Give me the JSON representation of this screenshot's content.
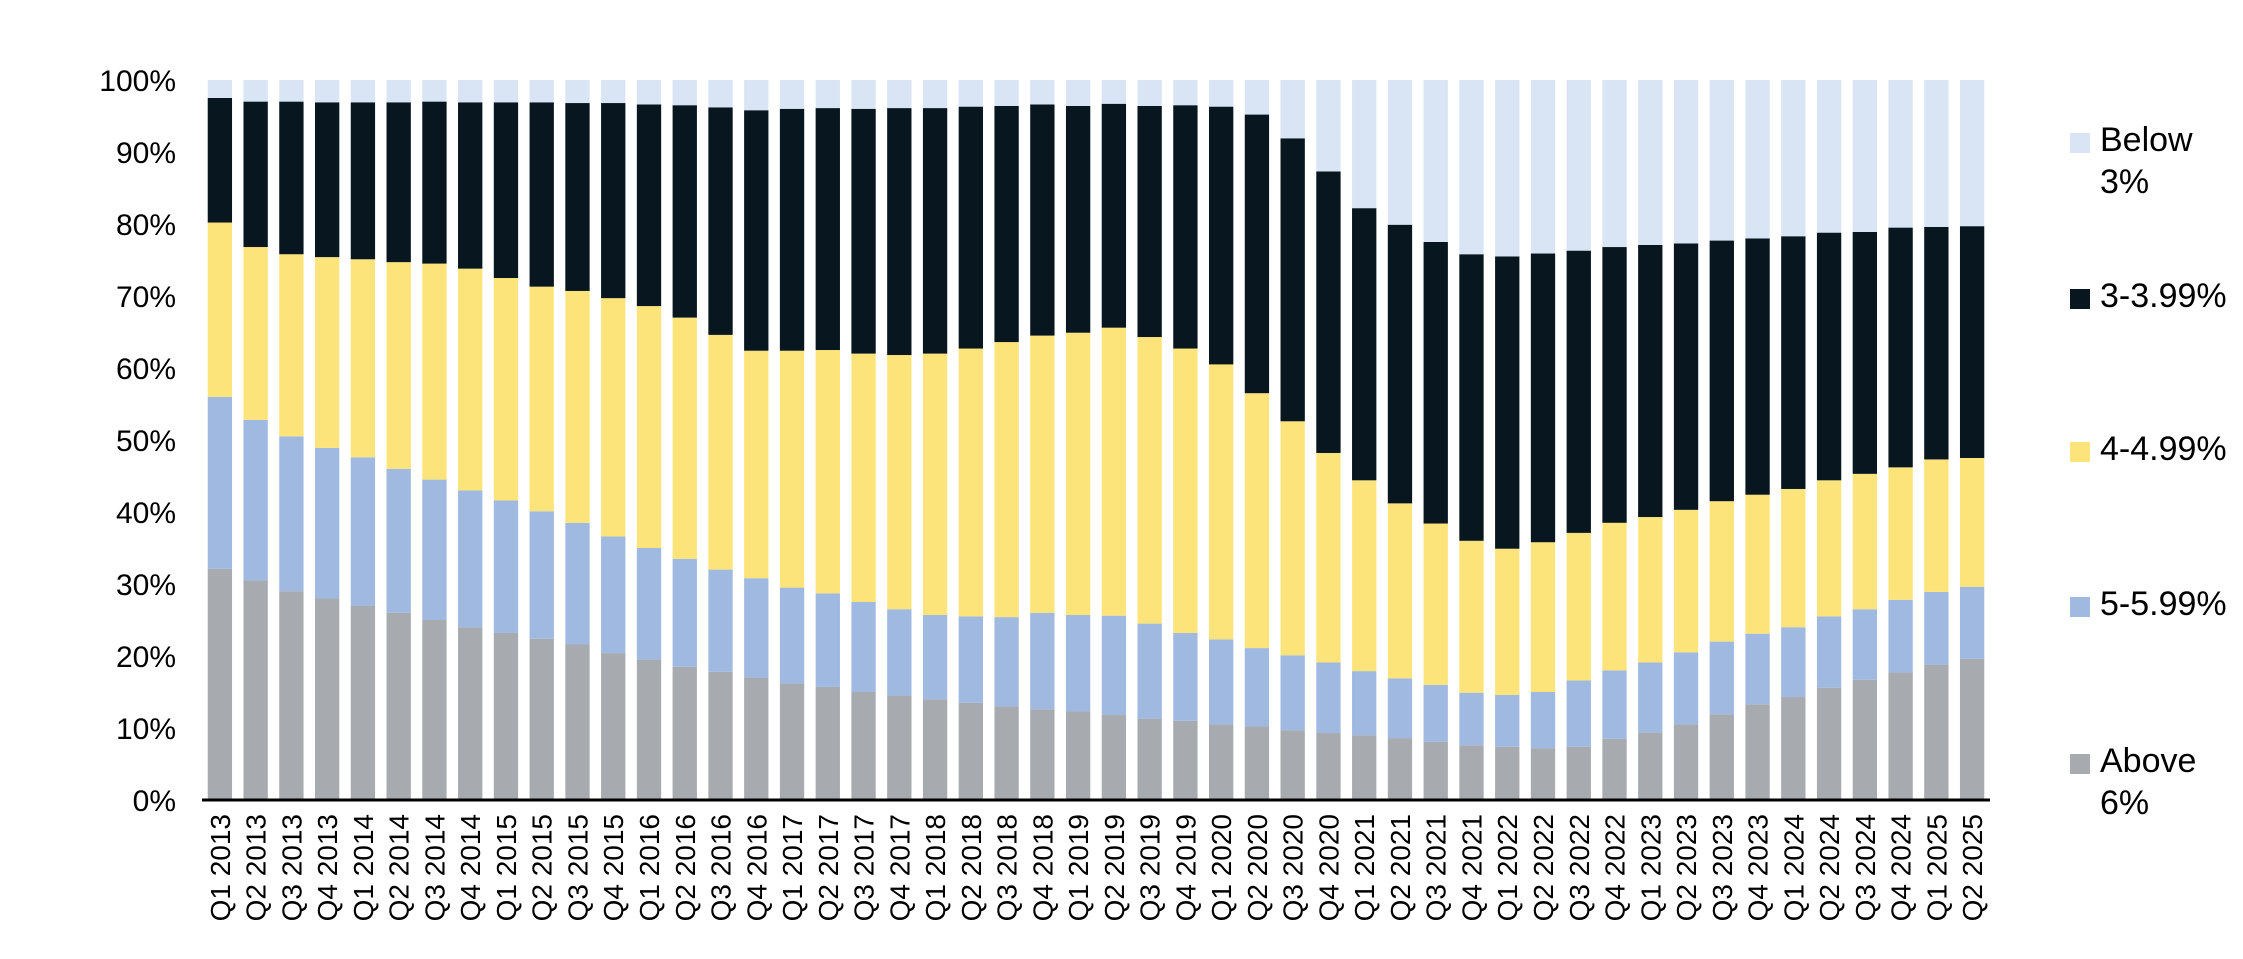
{
  "chart_data": {
    "type": "bar",
    "stacked": true,
    "title": "",
    "xlabel": "",
    "ylabel": "",
    "ylim": [
      0,
      100
    ],
    "yticks": [
      "0%",
      "10%",
      "20%",
      "30%",
      "40%",
      "50%",
      "60%",
      "70%",
      "80%",
      "90%",
      "100%"
    ],
    "legend_position": "right",
    "categories": [
      "Q1 2013",
      "Q2 2013",
      "Q3 2013",
      "Q4 2013",
      "Q1 2014",
      "Q2 2014",
      "Q3 2014",
      "Q4 2014",
      "Q1 2015",
      "Q2 2015",
      "Q3 2015",
      "Q4 2015",
      "Q1 2016",
      "Q2 2016",
      "Q3 2016",
      "Q4 2016",
      "Q1 2017",
      "Q2 2017",
      "Q3 2017",
      "Q4 2017",
      "Q1 2018",
      "Q2 2018",
      "Q3 2018",
      "Q4 2018",
      "Q1 2019",
      "Q2 2019",
      "Q3 2019",
      "Q4 2019",
      "Q1 2020",
      "Q2 2020",
      "Q3 2020",
      "Q4 2020",
      "Q1 2021",
      "Q2 2021",
      "Q3 2021",
      "Q4 2021",
      "Q1 2022",
      "Q2 2022",
      "Q3 2022",
      "Q4 2022",
      "Q1 2023",
      "Q2 2023",
      "Q3 2023",
      "Q4 2023",
      "Q1 2024",
      "Q2 2024",
      "Q3 2024",
      "Q4 2024",
      "Q1 2025",
      "Q2 2025"
    ],
    "series": [
      {
        "name": "Above 6%",
        "color": "#a7aaae",
        "values": [
          32.1,
          30.5,
          29.0,
          28.0,
          27.0,
          26.0,
          25.0,
          24.0,
          23.2,
          22.4,
          21.6,
          20.4,
          19.5,
          18.5,
          17.8,
          17.0,
          16.2,
          15.7,
          15.0,
          14.5,
          14.0,
          13.5,
          13.0,
          12.6,
          12.3,
          11.8,
          11.3,
          11.0,
          10.5,
          10.2,
          9.7,
          9.3,
          9.0,
          8.6,
          8.1,
          7.6,
          7.4,
          7.2,
          7.4,
          8.5,
          9.4,
          10.5,
          11.9,
          13.3,
          14.3,
          15.6,
          16.7,
          17.7,
          18.8,
          19.6
        ]
      },
      {
        "name": "5-5.99%",
        "color": "#9fb9e1",
        "values": [
          23.9,
          22.3,
          21.5,
          20.9,
          20.6,
          20.0,
          19.5,
          19.0,
          18.4,
          17.7,
          16.9,
          16.2,
          15.5,
          15.0,
          14.2,
          13.8,
          13.3,
          13.0,
          12.5,
          12.0,
          11.7,
          12.0,
          12.4,
          13.4,
          13.4,
          13.8,
          13.2,
          12.2,
          11.8,
          10.9,
          10.4,
          9.8,
          8.9,
          8.3,
          7.9,
          7.3,
          7.2,
          7.8,
          9.2,
          9.5,
          9.7,
          10.0,
          10.1,
          9.8,
          9.7,
          9.9,
          9.8,
          10.1,
          10.1,
          10.0
        ]
      },
      {
        "name": "4-4.99%",
        "color": "#fde47a",
        "values": [
          24.2,
          24.0,
          25.3,
          26.5,
          27.5,
          28.7,
          30.0,
          30.8,
          30.9,
          31.2,
          32.2,
          33.1,
          33.6,
          33.5,
          32.6,
          31.6,
          32.9,
          33.8,
          34.5,
          35.3,
          36.3,
          37.2,
          38.2,
          38.5,
          39.2,
          40.0,
          39.8,
          39.5,
          38.2,
          35.4,
          32.5,
          29.1,
          26.5,
          24.3,
          22.4,
          21.1,
          20.3,
          20.8,
          20.5,
          20.5,
          20.2,
          19.8,
          19.5,
          19.3,
          19.2,
          18.9,
          18.8,
          18.4,
          18.4,
          17.9
        ]
      },
      {
        "name": "3-3.99%",
        "color": "#07161f",
        "values": [
          17.3,
          20.2,
          21.2,
          21.5,
          21.8,
          22.2,
          22.5,
          23.1,
          24.4,
          25.6,
          26.1,
          27.1,
          28.0,
          29.5,
          31.6,
          33.4,
          33.6,
          33.6,
          34.0,
          34.3,
          34.1,
          33.6,
          32.8,
          32.1,
          31.5,
          31.1,
          32.1,
          33.8,
          35.8,
          38.7,
          39.3,
          39.1,
          37.8,
          38.7,
          39.1,
          39.8,
          40.6,
          40.1,
          39.2,
          38.3,
          37.8,
          37.0,
          36.2,
          35.6,
          35.1,
          34.4,
          33.6,
          33.3,
          32.3,
          32.2
        ]
      },
      {
        "name": "Below 3%",
        "color": "#d9e5f4",
        "values": [
          2.5,
          3.0,
          3.0,
          3.1,
          3.1,
          3.1,
          3.0,
          3.1,
          3.1,
          3.1,
          3.2,
          3.2,
          3.4,
          3.5,
          3.8,
          4.2,
          4.0,
          3.9,
          4.0,
          3.9,
          3.9,
          3.7,
          3.6,
          3.4,
          3.6,
          3.3,
          3.6,
          3.5,
          3.7,
          4.8,
          8.1,
          12.7,
          17.8,
          20.1,
          22.5,
          24.2,
          24.5,
          24.1,
          23.7,
          23.2,
          22.9,
          22.7,
          22.3,
          22.0,
          21.7,
          21.2,
          21.1,
          20.5,
          20.4,
          20.3
        ]
      }
    ]
  }
}
